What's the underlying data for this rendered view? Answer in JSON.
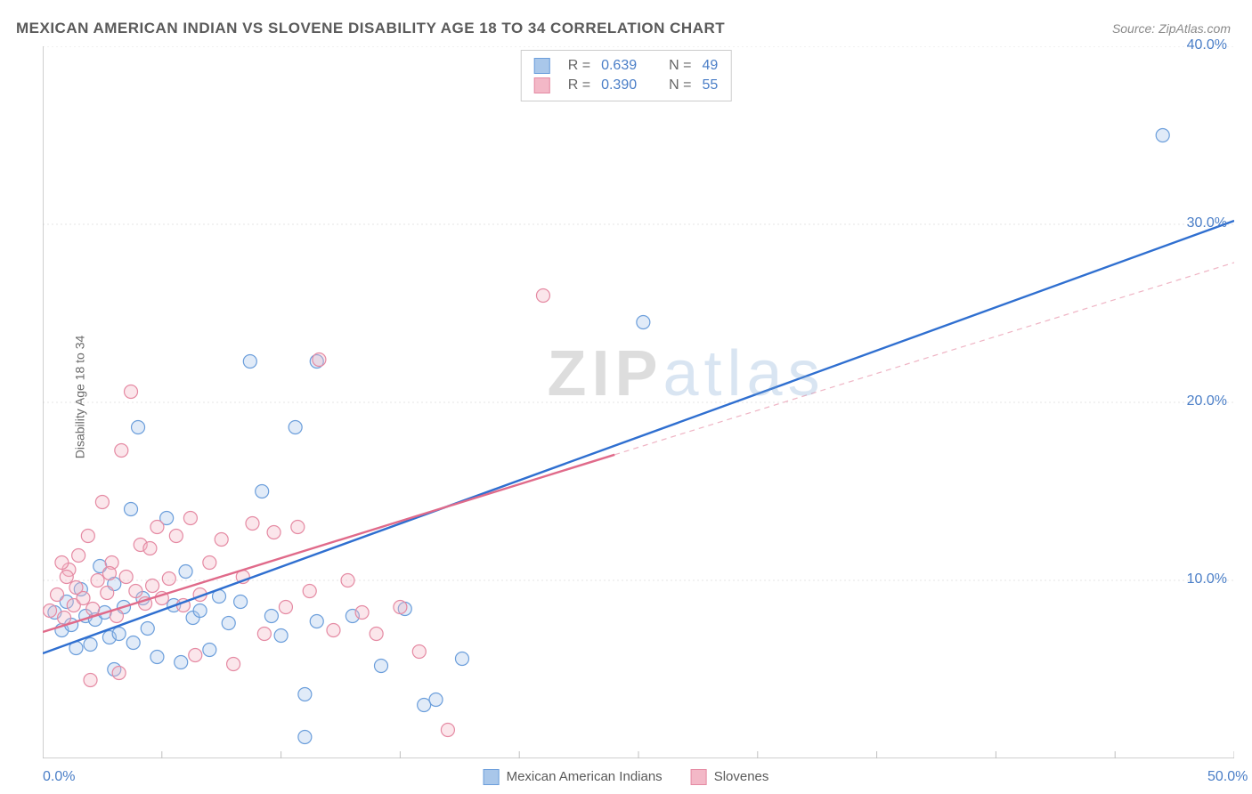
{
  "title": "MEXICAN AMERICAN INDIAN VS SLOVENE DISABILITY AGE 18 TO 34 CORRELATION CHART",
  "source_prefix": "Source: ",
  "source": "ZipAtlas.com",
  "ylabel": "Disability Age 18 to 34",
  "watermark_a": "ZIP",
  "watermark_b": "atlas",
  "chart": {
    "type": "scatter-with-regression",
    "background_color": "#ffffff",
    "grid_color": "#e4e4e4",
    "grid_dash": "2,3",
    "axis_color": "#bfbfbf",
    "xlim": [
      0,
      50
    ],
    "ylim": [
      0,
      40
    ],
    "xticks": [
      0,
      5,
      10,
      15,
      20,
      25,
      30,
      35,
      40,
      45,
      50
    ],
    "xtick_labels": {
      "0": "0.0%",
      "50": "50.0%"
    },
    "yticks": [
      10,
      20,
      30,
      40
    ],
    "ytick_labels": {
      "10": "10.0%",
      "20": "20.0%",
      "30": "30.0%",
      "40": "40.0%"
    },
    "point_radius": 7.5,
    "point_stroke_width": 1.2,
    "point_fill_opacity": 0.35,
    "series": [
      {
        "name": "Mexican American Indians",
        "color_fill": "#a9c7ea",
        "color_stroke": "#6b9edb",
        "regression": {
          "slope": 0.486,
          "intercept": 5.9,
          "x0": 0,
          "x1_solid": 50,
          "stroke": "#2f6fd0",
          "width": 2.4,
          "dash_extension": null
        },
        "stats": {
          "R_label": "R =",
          "R": "0.639",
          "N_label": "N =",
          "N": "49"
        },
        "points": [
          [
            0.5,
            8.2
          ],
          [
            0.8,
            7.2
          ],
          [
            1.0,
            8.8
          ],
          [
            1.2,
            7.5
          ],
          [
            1.4,
            6.2
          ],
          [
            1.6,
            9.5
          ],
          [
            1.8,
            8.0
          ],
          [
            2.0,
            6.4
          ],
          [
            2.2,
            7.8
          ],
          [
            2.4,
            10.8
          ],
          [
            2.6,
            8.2
          ],
          [
            2.8,
            6.8
          ],
          [
            3.0,
            9.8
          ],
          [
            3.2,
            7.0
          ],
          [
            3.4,
            8.5
          ],
          [
            3.7,
            14.0
          ],
          [
            3.8,
            6.5
          ],
          [
            4.0,
            18.6
          ],
          [
            4.2,
            9.0
          ],
          [
            4.4,
            7.3
          ],
          [
            4.8,
            5.7
          ],
          [
            5.2,
            13.5
          ],
          [
            5.5,
            8.6
          ],
          [
            5.8,
            5.4
          ],
          [
            6.0,
            10.5
          ],
          [
            6.3,
            7.9
          ],
          [
            6.6,
            8.3
          ],
          [
            7.0,
            6.1
          ],
          [
            7.4,
            9.1
          ],
          [
            7.8,
            7.6
          ],
          [
            8.3,
            8.8
          ],
          [
            8.7,
            22.3
          ],
          [
            9.2,
            15.0
          ],
          [
            9.6,
            8.0
          ],
          [
            10.0,
            6.9
          ],
          [
            10.6,
            18.6
          ],
          [
            11.0,
            3.6
          ],
          [
            11.5,
            7.7
          ],
          [
            13.0,
            8.0
          ],
          [
            14.2,
            5.2
          ],
          [
            15.2,
            8.4
          ],
          [
            16.0,
            3.0
          ],
          [
            16.5,
            3.3
          ],
          [
            17.6,
            5.6
          ],
          [
            11.5,
            22.3
          ],
          [
            25.2,
            24.5
          ],
          [
            47.0,
            35.0
          ],
          [
            11.0,
            1.2
          ],
          [
            3.0,
            5.0
          ]
        ]
      },
      {
        "name": "Slovenes",
        "color_fill": "#f3b8c7",
        "color_stroke": "#e58aa3",
        "regression": {
          "slope": 0.415,
          "intercept": 7.1,
          "x0": 0,
          "x1_solid": 24,
          "stroke": "#e06a8a",
          "width": 2.4,
          "dash_extension": {
            "x1": 50,
            "dash": "6,5",
            "opacity": 0.5
          }
        },
        "stats": {
          "R_label": "R =",
          "R": "0.390",
          "N_label": "N =",
          "N": "55"
        },
        "points": [
          [
            0.3,
            8.3
          ],
          [
            0.6,
            9.2
          ],
          [
            0.9,
            7.9
          ],
          [
            1.1,
            10.6
          ],
          [
            1.3,
            8.6
          ],
          [
            1.5,
            11.4
          ],
          [
            1.7,
            9.0
          ],
          [
            1.9,
            12.5
          ],
          [
            2.1,
            8.4
          ],
          [
            2.3,
            10.0
          ],
          [
            2.5,
            14.4
          ],
          [
            2.7,
            9.3
          ],
          [
            2.9,
            11.0
          ],
          [
            3.1,
            8.0
          ],
          [
            3.3,
            17.3
          ],
          [
            3.5,
            10.2
          ],
          [
            3.7,
            20.6
          ],
          [
            3.9,
            9.4
          ],
          [
            4.1,
            12.0
          ],
          [
            4.3,
            8.7
          ],
          [
            4.5,
            11.8
          ],
          [
            4.8,
            13.0
          ],
          [
            5.0,
            9.0
          ],
          [
            5.3,
            10.1
          ],
          [
            5.6,
            12.5
          ],
          [
            5.9,
            8.6
          ],
          [
            6.2,
            13.5
          ],
          [
            6.6,
            9.2
          ],
          [
            7.0,
            11.0
          ],
          [
            7.5,
            12.3
          ],
          [
            8.0,
            5.3
          ],
          [
            8.4,
            10.2
          ],
          [
            8.8,
            13.2
          ],
          [
            9.3,
            7.0
          ],
          [
            9.7,
            12.7
          ],
          [
            10.2,
            8.5
          ],
          [
            10.7,
            13.0
          ],
          [
            11.2,
            9.4
          ],
          [
            11.6,
            22.4
          ],
          [
            12.2,
            7.2
          ],
          [
            12.8,
            10.0
          ],
          [
            13.4,
            8.2
          ],
          [
            14.0,
            7.0
          ],
          [
            15.0,
            8.5
          ],
          [
            15.8,
            6.0
          ],
          [
            17.0,
            1.6
          ],
          [
            21.0,
            26.0
          ],
          [
            2.0,
            4.4
          ],
          [
            3.2,
            4.8
          ],
          [
            1.0,
            10.2
          ],
          [
            0.8,
            11.0
          ],
          [
            1.4,
            9.6
          ],
          [
            2.8,
            10.4
          ],
          [
            4.6,
            9.7
          ],
          [
            6.4,
            5.8
          ]
        ]
      }
    ]
  },
  "bottom_legend": [
    {
      "swatch_fill": "#a9c7ea",
      "swatch_stroke": "#6b9edb",
      "label": "Mexican American Indians"
    },
    {
      "swatch_fill": "#f3b8c7",
      "swatch_stroke": "#e58aa3",
      "label": "Slovenes"
    }
  ]
}
